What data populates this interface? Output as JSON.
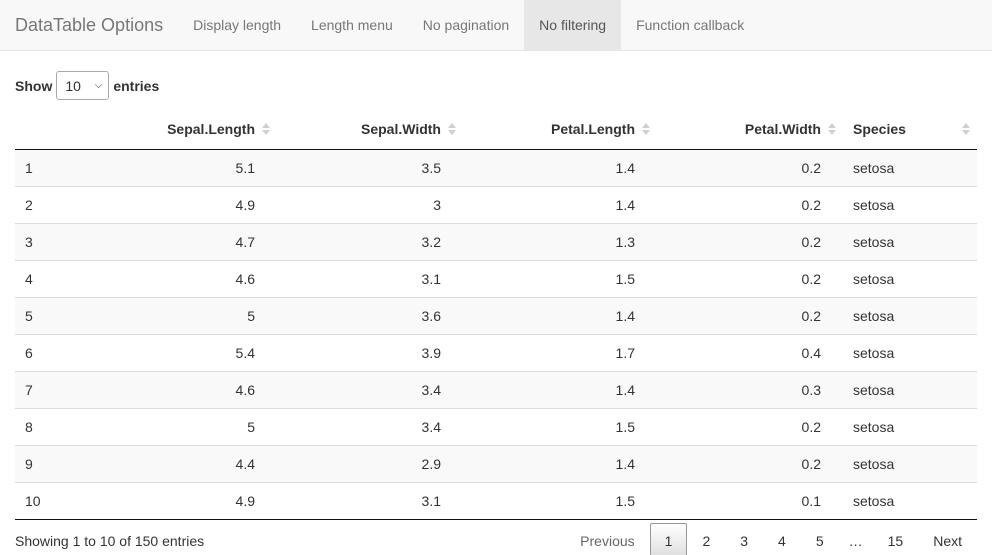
{
  "navbar": {
    "brand": "DataTable Options",
    "items": [
      {
        "label": "Display length"
      },
      {
        "label": "Length menu"
      },
      {
        "label": "No pagination"
      },
      {
        "label": "No filtering"
      },
      {
        "label": "Function callback"
      }
    ],
    "active_item": "No filtering"
  },
  "length_control": {
    "prefix": "Show",
    "selected": "10",
    "suffix": "entries"
  },
  "table": {
    "columns": [
      "",
      "Sepal.Length",
      "Sepal.Width",
      "Petal.Length",
      "Petal.Width",
      "Species"
    ],
    "rows": [
      [
        "1",
        "5.1",
        "3.5",
        "1.4",
        "0.2",
        "setosa"
      ],
      [
        "2",
        "4.9",
        "3",
        "1.4",
        "0.2",
        "setosa"
      ],
      [
        "3",
        "4.7",
        "3.2",
        "1.3",
        "0.2",
        "setosa"
      ],
      [
        "4",
        "4.6",
        "3.1",
        "1.5",
        "0.2",
        "setosa"
      ],
      [
        "5",
        "5",
        "3.6",
        "1.4",
        "0.2",
        "setosa"
      ],
      [
        "6",
        "5.4",
        "3.9",
        "1.7",
        "0.4",
        "setosa"
      ],
      [
        "7",
        "4.6",
        "3.4",
        "1.4",
        "0.3",
        "setosa"
      ],
      [
        "8",
        "5",
        "3.4",
        "1.5",
        "0.2",
        "setosa"
      ],
      [
        "9",
        "4.4",
        "2.9",
        "1.4",
        "0.2",
        "setosa"
      ],
      [
        "10",
        "4.9",
        "3.1",
        "1.5",
        "0.1",
        "setosa"
      ]
    ]
  },
  "footer": {
    "info": "Showing 1 to 10 of 150 entries",
    "pagination": {
      "previous": "Previous",
      "pages": [
        "1",
        "2",
        "3",
        "4",
        "5"
      ],
      "ellipsis": "…",
      "last_page": "15",
      "next": "Next",
      "current": "1"
    }
  }
}
